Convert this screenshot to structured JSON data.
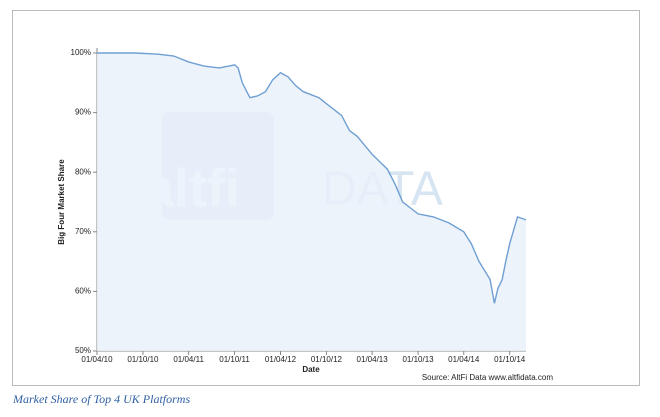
{
  "chart_data": {
    "type": "area",
    "y_label": "Big Four Market Share",
    "x_label": "Date",
    "source": "Source: AltFi Data www.altfidata.com",
    "watermark": [
      "altfi",
      "DATA"
    ],
    "x": [
      "01/04/10",
      "01/09/10",
      "01/12/10",
      "01/02/11",
      "01/04/11",
      "01/06/11",
      "01/08/11",
      "01/10/11",
      "15/10/11",
      "01/11/11",
      "01/12/11",
      "01/01/12",
      "01/02/12",
      "01/03/12",
      "01/04/12",
      "01/05/12",
      "01/06/12",
      "01/07/12",
      "01/08/12",
      "01/09/12",
      "01/10/12",
      "01/12/12",
      "01/01/13",
      "01/02/13",
      "01/04/13",
      "01/06/13",
      "01/07/13",
      "01/08/13",
      "01/09/13",
      "01/10/13",
      "01/12/13",
      "01/02/14",
      "01/04/14",
      "01/05/14",
      "01/06/14",
      "15/07/14",
      "01/08/14",
      "15/08/14",
      "01/09/14",
      "15/09/14",
      "01/10/14",
      "01/11/14",
      "05/12/14"
    ],
    "series": [
      {
        "name": "Big Four Market Share",
        "color": "#6f9fd2",
        "values": [
          100,
          100,
          99.8,
          99.5,
          98.5,
          97.8,
          97.5,
          98,
          97.5,
          95,
          92.5,
          92.8,
          93.5,
          95.5,
          96.7,
          96,
          94.5,
          93.5,
          93,
          92.5,
          91.5,
          89.5,
          87,
          86,
          83,
          80.5,
          78,
          75,
          74,
          73,
          72.5,
          71.5,
          70,
          68,
          65,
          62,
          58,
          60.5,
          62,
          65,
          68,
          72.5,
          72
        ]
      }
    ],
    "fill": "#e9f1f9",
    "xlim": [
      "01/04/10",
      "05/12/14"
    ],
    "xticks": [
      "01/04/10",
      "01/10/10",
      "01/04/11",
      "01/10/11",
      "01/04/12",
      "01/10/12",
      "01/04/13",
      "01/10/13",
      "01/04/14",
      "01/10/14"
    ],
    "ylim": [
      50,
      100
    ],
    "yticks": [
      {
        "value": 50,
        "label": "50%"
      },
      {
        "value": 60,
        "label": "60%"
      },
      {
        "value": 70,
        "label": "70%"
      },
      {
        "value": 80,
        "label": "80%"
      },
      {
        "value": 90,
        "label": "90%"
      },
      {
        "value": 100,
        "label": "100%"
      }
    ]
  },
  "caption": "Market Share of Top 4 UK Platforms"
}
